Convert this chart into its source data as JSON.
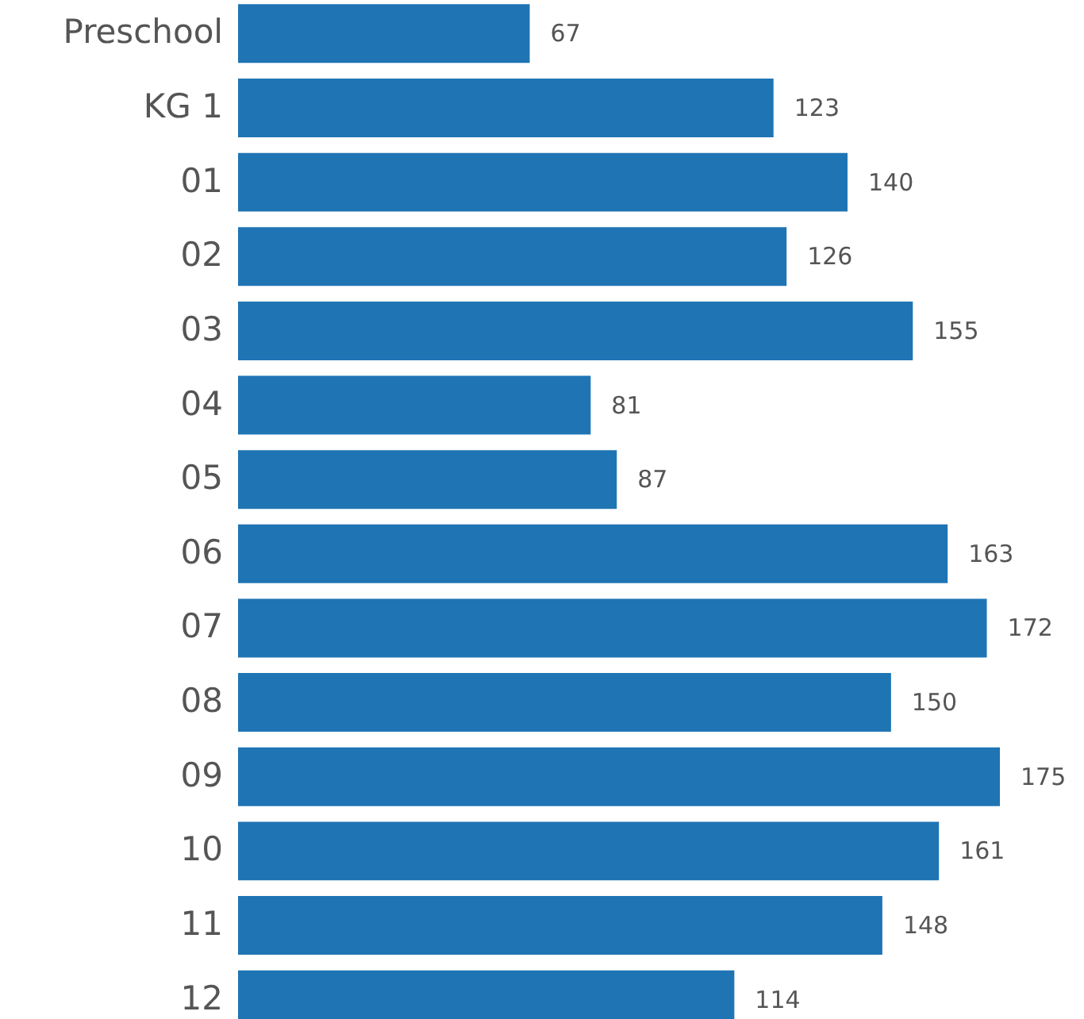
{
  "chart_data": {
    "type": "bar",
    "orientation": "horizontal",
    "categories": [
      "Preschool",
      "KG 1",
      "01",
      "02",
      "03",
      "04",
      "05",
      "06",
      "07",
      "08",
      "09",
      "10",
      "11",
      "12"
    ],
    "values": [
      67,
      123,
      140,
      126,
      155,
      81,
      87,
      163,
      172,
      150,
      175,
      161,
      148,
      114
    ],
    "color": "#1f74b4",
    "data_labels": true
  }
}
